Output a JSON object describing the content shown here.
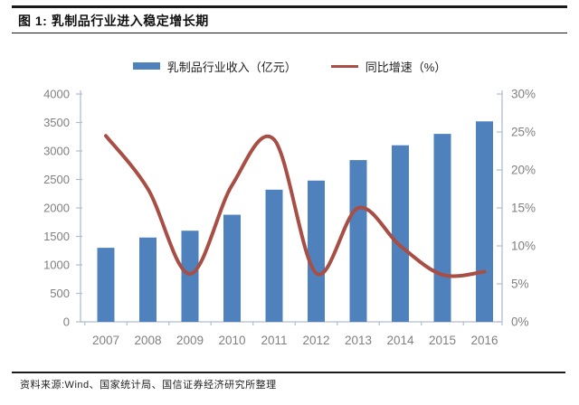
{
  "header": {
    "title": "图 1:  乳制品行业进入稳定增长期"
  },
  "legend": {
    "items": [
      {
        "label": "乳制品行业收入（亿元）",
        "swatch": "bar"
      },
      {
        "label": "同比增速（%）",
        "swatch": "line"
      }
    ]
  },
  "colors": {
    "bar": "#4f81bd",
    "line": "#a84e45",
    "axis": "#b0bdd0",
    "tick_label": "#808080",
    "rule": "#1a1a1a"
  },
  "chart_data": {
    "type": "bar",
    "title": "乳制品行业进入稳定增长期",
    "categories": [
      "2007",
      "2008",
      "2009",
      "2010",
      "2011",
      "2012",
      "2013",
      "2014",
      "2015",
      "2016"
    ],
    "series": [
      {
        "name": "乳制品行业收入（亿元）",
        "type": "bar",
        "axis": "left",
        "color": "#4f81bd",
        "values": [
          1300,
          1480,
          1600,
          1880,
          2320,
          2480,
          2840,
          3100,
          3300,
          3520
        ]
      },
      {
        "name": "同比增速（%）",
        "type": "line",
        "axis": "right",
        "color": "#a84e45",
        "smooth": true,
        "values": [
          24.5,
          17.5,
          6.3,
          18,
          24,
          6.4,
          15,
          10,
          6.2,
          6.6
        ]
      }
    ],
    "xlabel": "",
    "ylabel_left": "",
    "ylabel_right": "",
    "left_axis": {
      "min": 0,
      "max": 4000,
      "step": 500,
      "ticks": [
        "0",
        "500",
        "1000",
        "1500",
        "2000",
        "2500",
        "3000",
        "3500",
        "4000"
      ]
    },
    "right_axis": {
      "min": 0,
      "max": 30,
      "step": 5,
      "ticks": [
        "0%",
        "5%",
        "10%",
        "15%",
        "20%",
        "25%",
        "30%"
      ]
    },
    "grid": false,
    "legend_position": "top"
  },
  "footer": {
    "source": "资料来源:Wind、国家统计局、国信证券经济研究所整理"
  }
}
